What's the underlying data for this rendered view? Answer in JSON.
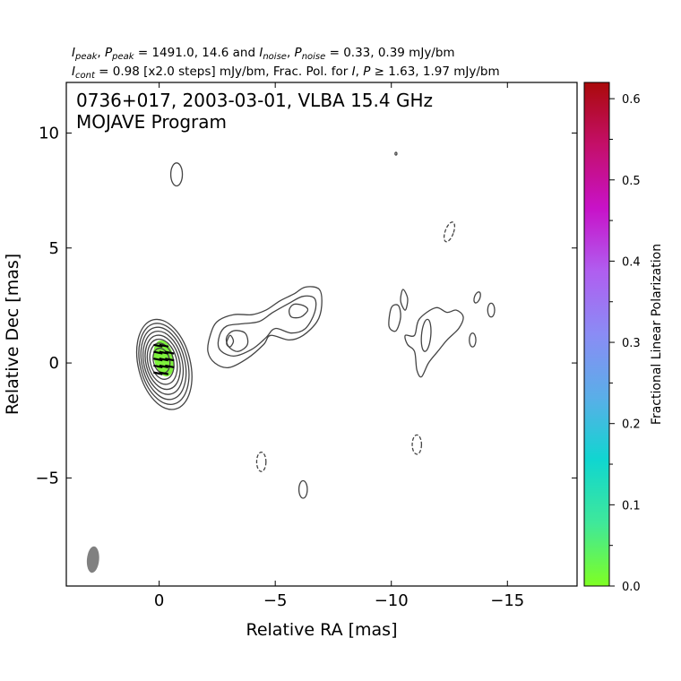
{
  "chart_data": {
    "type": "contour",
    "header": {
      "line1": "I_peak, P_peak = 1491.0, 14.6 and I_noise, P_noise = 0.33, 0.39 mJy/bm",
      "line2": "I_cont = 0.98 [x2.0 steps] mJy/bm, Frac. Pol. for I, P ≥ 1.63, 1.97 mJy/bm"
    },
    "title_line1": "0736+017, 2003-03-01, VLBA 15.4 GHz",
    "title_line2": "MOJAVE Program",
    "xlabel": "Relative RA [mas]",
    "ylabel": "Relative Dec [mas]",
    "xlim": [
      4.0,
      -18.0
    ],
    "ylim": [
      -9.7,
      12.2
    ],
    "xticks": [
      0,
      -5,
      -10,
      -15
    ],
    "xtick_labels": [
      "0",
      "−5",
      "−10",
      "−15"
    ],
    "yticks": [
      -5,
      0,
      5,
      10
    ],
    "ytick_labels": [
      "−5",
      "0",
      "5",
      "10"
    ],
    "i_peak_mJy_per_beam": 1491.0,
    "p_peak_mJy_per_beam": 14.6,
    "i_noise_mJy_per_beam": 0.33,
    "p_noise_mJy_per_beam": 0.39,
    "lowest_contour_mJy_per_beam": 0.98,
    "contour_step_factor": 2.0,
    "fracpol_threshold_I": 1.63,
    "fracpol_threshold_P": 1.97,
    "core": {
      "ra": -0.1,
      "dec": 0.1,
      "contours": [
        {
          "rx": 0.35,
          "ry": 0.55
        },
        {
          "rx": 0.5,
          "ry": 0.8
        },
        {
          "rx": 0.62,
          "ry": 1.0
        },
        {
          "rx": 0.72,
          "ry": 1.2
        },
        {
          "rx": 0.82,
          "ry": 1.4
        },
        {
          "rx": 0.92,
          "ry": 1.6
        },
        {
          "rx": 1.02,
          "ry": 1.8
        },
        {
          "rx": 1.12,
          "ry": 2.0
        }
      ],
      "pol_patch": {
        "ra": -0.2,
        "dec": 0.2,
        "rx": 0.42,
        "ry": 0.8,
        "fractional_pol": 0.0
      }
    },
    "evpa_ticks": [
      {
        "ra": 0.05,
        "dec": 0.75
      },
      {
        "ra": -0.2,
        "dec": 0.75
      },
      {
        "ra": 0.05,
        "dec": 0.45
      },
      {
        "ra": -0.2,
        "dec": 0.45
      },
      {
        "ra": -0.45,
        "dec": 0.45
      },
      {
        "ra": 0.05,
        "dec": 0.15
      },
      {
        "ra": -0.2,
        "dec": 0.15
      },
      {
        "ra": -0.45,
        "dec": 0.15
      },
      {
        "ra": 0.05,
        "dec": -0.15
      },
      {
        "ra": -0.2,
        "dec": -0.15
      },
      {
        "ra": -0.45,
        "dec": -0.15
      },
      {
        "ra": 0.05,
        "dec": -0.45
      },
      {
        "ra": -0.2,
        "dec": -0.45
      }
    ],
    "isolated_contours": [
      {
        "ra": -0.75,
        "dec": 8.2,
        "rx": 0.25,
        "ry": 0.5,
        "dashed": false,
        "rot": 0
      },
      {
        "ra": -12.5,
        "dec": 5.7,
        "rx": 0.18,
        "ry": 0.45,
        "dashed": true,
        "rot": 20
      },
      {
        "ra": -4.4,
        "dec": -4.3,
        "rx": 0.2,
        "ry": 0.42,
        "dashed": true,
        "rot": 0
      },
      {
        "ra": -11.1,
        "dec": -3.55,
        "rx": 0.2,
        "ry": 0.42,
        "dashed": true,
        "rot": 0
      },
      {
        "ra": -6.2,
        "dec": -5.5,
        "rx": 0.18,
        "ry": 0.38,
        "dashed": false,
        "rot": 0
      },
      {
        "ra": -13.7,
        "dec": 2.85,
        "rx": 0.12,
        "ry": 0.25,
        "dashed": false,
        "rot": 20
      },
      {
        "ra": -14.3,
        "dec": 2.3,
        "rx": 0.15,
        "ry": 0.3,
        "dashed": false,
        "rot": 0
      },
      {
        "ra": -13.5,
        "dec": 1.0,
        "rx": 0.14,
        "ry": 0.3,
        "dashed": false,
        "rot": 0
      },
      {
        "ra": -11.5,
        "dec": 1.2,
        "rx": 0.2,
        "ry": 0.7,
        "dashed": false,
        "rot": 5
      },
      {
        "ra": -10.2,
        "dec": 9.1,
        "rx": 0.04,
        "ry": 0.06,
        "dashed": false,
        "rot": 0
      }
    ],
    "jet_contours": [
      [
        [
          -2.2,
          1.2
        ],
        [
          -2.5,
          1.8
        ],
        [
          -3.2,
          2.1
        ],
        [
          -4.0,
          2.1
        ],
        [
          -4.6,
          2.3
        ],
        [
          -5.2,
          2.7
        ],
        [
          -5.8,
          3.0
        ],
        [
          -6.3,
          3.3
        ],
        [
          -6.9,
          3.2
        ],
        [
          -7.0,
          2.5
        ],
        [
          -6.8,
          1.8
        ],
        [
          -6.2,
          1.2
        ],
        [
          -5.6,
          1.0
        ],
        [
          -4.8,
          1.2
        ],
        [
          -4.5,
          0.8
        ],
        [
          -3.8,
          0.2
        ],
        [
          -3.0,
          -0.2
        ],
        [
          -2.4,
          0.0
        ],
        [
          -2.1,
          0.5
        ]
      ],
      [
        [
          -2.6,
          1.2
        ],
        [
          -2.9,
          1.6
        ],
        [
          -3.5,
          1.7
        ],
        [
          -4.3,
          1.8
        ],
        [
          -4.9,
          2.2
        ],
        [
          -5.6,
          2.6
        ],
        [
          -6.2,
          2.9
        ],
        [
          -6.7,
          2.8
        ],
        [
          -6.7,
          2.2
        ],
        [
          -6.3,
          1.5
        ],
        [
          -5.7,
          1.3
        ],
        [
          -5.0,
          1.5
        ],
        [
          -4.6,
          1.1
        ],
        [
          -4.0,
          0.6
        ],
        [
          -3.2,
          0.3
        ],
        [
          -2.6,
          0.6
        ]
      ],
      [
        [
          -2.9,
          1.1
        ],
        [
          -3.2,
          1.4
        ],
        [
          -3.7,
          1.3
        ],
        [
          -3.8,
          0.8
        ],
        [
          -3.4,
          0.5
        ],
        [
          -3.0,
          0.7
        ]
      ],
      [
        [
          -2.9,
          0.85
        ],
        [
          -3.05,
          1.2
        ],
        [
          -3.2,
          0.95
        ],
        [
          -3.05,
          0.7
        ]
      ],
      [
        [
          -5.6,
          2.3
        ],
        [
          -5.8,
          2.55
        ],
        [
          -6.2,
          2.5
        ],
        [
          -6.4,
          2.3
        ],
        [
          -6.1,
          2.0
        ],
        [
          -5.7,
          2.0
        ]
      ],
      [
        [
          -10.0,
          2.4
        ],
        [
          -10.3,
          2.5
        ],
        [
          -10.4,
          2.0
        ],
        [
          -10.2,
          1.4
        ],
        [
          -9.9,
          1.6
        ]
      ],
      [
        [
          -10.4,
          2.7
        ],
        [
          -10.5,
          3.2
        ],
        [
          -10.7,
          2.8
        ],
        [
          -10.6,
          2.3
        ]
      ],
      [
        [
          -10.7,
          0.8
        ],
        [
          -10.6,
          1.2
        ],
        [
          -11.0,
          1.2
        ],
        [
          -11.2,
          1.9
        ],
        [
          -11.9,
          2.4
        ],
        [
          -12.4,
          2.2
        ],
        [
          -12.8,
          2.3
        ],
        [
          -13.1,
          2.0
        ],
        [
          -12.9,
          1.5
        ],
        [
          -12.4,
          1.0
        ],
        [
          -12.0,
          0.5
        ],
        [
          -11.6,
          0.0
        ],
        [
          -11.3,
          -0.6
        ],
        [
          -11.1,
          -0.3
        ],
        [
          -11.0,
          0.5
        ]
      ]
    ],
    "beam": {
      "ra": 2.85,
      "dec": -8.55,
      "major": 1.15,
      "minor": 0.5,
      "pa_deg": 5
    },
    "colorbar": {
      "label": "Fractional Linear Polarization",
      "min": 0.0,
      "max": 0.62,
      "ticks": [
        0.0,
        0.1,
        0.2,
        0.3,
        0.4,
        0.5,
        0.6
      ],
      "tick_labels": [
        "0.0",
        "0.1",
        "0.2",
        "0.3",
        "0.4",
        "0.5",
        "0.6"
      ],
      "minor_ticks": [
        0.05,
        0.15,
        0.25,
        0.35,
        0.45,
        0.55
      ],
      "colors": [
        "#7fff22",
        "#3fe89a",
        "#10d6d0",
        "#5aaee8",
        "#8a8cf5",
        "#b05ef0",
        "#c812c8",
        "#c40f6a",
        "#aa0a0a"
      ]
    },
    "colors": {
      "contour": "#444444",
      "beam": "#808080",
      "pol_patch": "#7ef23c"
    }
  }
}
